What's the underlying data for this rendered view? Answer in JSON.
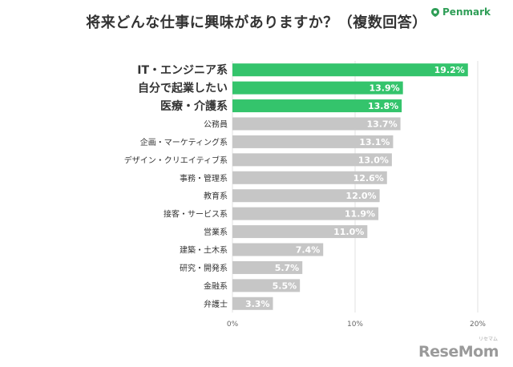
{
  "title": "将来どんな仕事に興味がありますか？（複数回答）",
  "brand": {
    "name": "Penmark",
    "icon": "penmark-leaf-icon"
  },
  "watermark": {
    "text": "ReseMom",
    "kana": "リセマム"
  },
  "colors": {
    "highlight": "#34c46c",
    "normal": "#c6c6c6",
    "label_text": "#333333"
  },
  "chart_data": {
    "type": "bar",
    "orientation": "horizontal",
    "categories": [
      "IT・エンジニア系",
      "自分で起業したい",
      "医療・介護系",
      "公務員",
      "企画・マーケティング系",
      "デザイン・クリエイティブ系",
      "事務・管理系",
      "教育系",
      "接客・サービス系",
      "営業系",
      "建築・土木系",
      "研究・開発系",
      "金融系",
      "弁護士"
    ],
    "values": [
      19.2,
      13.9,
      13.8,
      13.7,
      13.1,
      13.0,
      12.6,
      12.0,
      11.9,
      11.0,
      7.4,
      5.7,
      5.5,
      3.3
    ],
    "value_labels": [
      "19.2%",
      "13.9%",
      "13.8%",
      "13.7%",
      "13.1%",
      "13.0%",
      "12.6%",
      "12.0%",
      "11.9%",
      "11.0%",
      "7.4%",
      "5.7%",
      "5.5%",
      "3.3%"
    ],
    "highlighted": [
      true,
      true,
      true,
      false,
      false,
      false,
      false,
      false,
      false,
      false,
      false,
      false,
      false,
      false
    ],
    "xlim": [
      0,
      20
    ],
    "xticks": [
      0,
      10,
      20
    ],
    "xtick_labels": [
      "0%",
      "10%",
      "20%"
    ],
    "grid": true,
    "legend": "none"
  }
}
